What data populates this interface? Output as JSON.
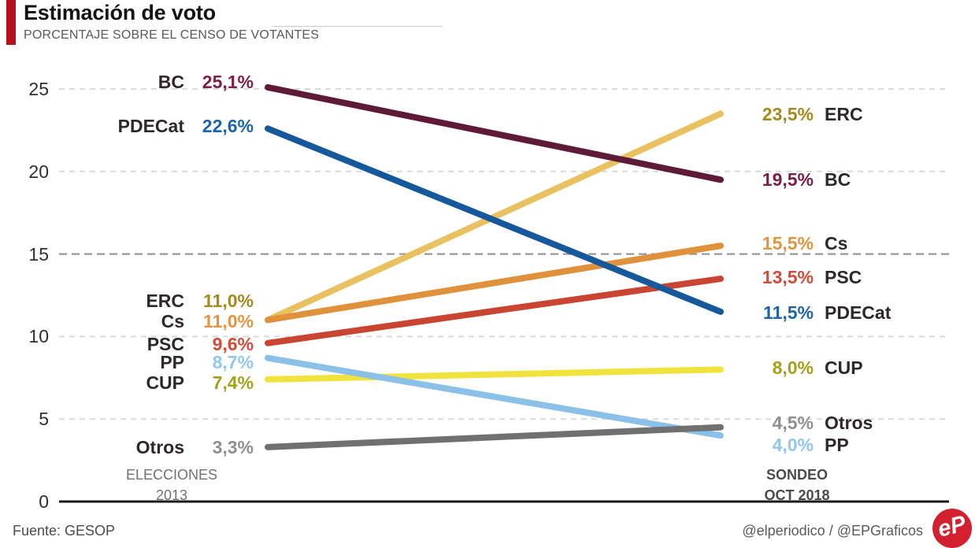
{
  "header": {
    "title": "Estimación de voto",
    "subtitle": "PORCENTAJE SOBRE EL CENSO DE VOTANTES",
    "accent_color": "#b5121f"
  },
  "chart_data": {
    "type": "line",
    "subtype": "slope-chart",
    "title": "Estimación de voto",
    "subtitle": "PORCENTAJE SOBRE EL CENSO DE VOTANTES",
    "x_labels": [
      {
        "lines": [
          "ELECCIONES",
          "2013"
        ],
        "bold": false
      },
      {
        "lines": [
          "SONDEO",
          "OCT 2018"
        ],
        "bold": true
      }
    ],
    "y_ticks": [
      25,
      20,
      15,
      10,
      5,
      0
    ],
    "ylim": [
      0,
      26
    ],
    "grid": "horizontal-dashed",
    "emphasized_gridline": 15,
    "name_color": "#2f282a",
    "series": [
      {
        "name": "BC",
        "values": [
          25.1,
          19.5
        ],
        "display": [
          "25,1%",
          "19,5%"
        ],
        "color": "#5e1a37",
        "value_color": "#7d2049"
      },
      {
        "name": "PDECat",
        "values": [
          22.6,
          11.5
        ],
        "display": [
          "22,6%",
          "11,5%"
        ],
        "color": "#15599c",
        "value_color": "#1d64ab"
      },
      {
        "name": "ERC",
        "values": [
          11.0,
          23.5
        ],
        "display": [
          "11,0%",
          "23,5%"
        ],
        "color": "#e9c161",
        "value_color": "#a68a1e"
      },
      {
        "name": "Cs",
        "values": [
          11.0,
          15.5
        ],
        "display": [
          "11,0%",
          "15,5%"
        ],
        "color": "#e0913c",
        "value_color": "#e39440"
      },
      {
        "name": "PSC",
        "values": [
          9.6,
          13.5
        ],
        "display": [
          "9,6%",
          "13,5%"
        ],
        "color": "#c94532",
        "value_color": "#d54a37"
      },
      {
        "name": "PP",
        "values": [
          8.7,
          4.0
        ],
        "display": [
          "8,7%",
          "4,0%"
        ],
        "color": "#8bc1e9",
        "value_color": "#92c8f0"
      },
      {
        "name": "CUP",
        "values": [
          7.4,
          8.0
        ],
        "display": [
          "7,4%",
          "8,0%"
        ],
        "color": "#f1e33e",
        "value_color": "#a5a01b"
      },
      {
        "name": "Otros",
        "values": [
          3.3,
          4.5
        ],
        "display": [
          "3,3%",
          "4,5%"
        ],
        "color": "#707070",
        "value_color": "#909090"
      }
    ]
  },
  "footer": {
    "source": "Fuente: GESOP",
    "credits": "@elperiodico / @EPGraficos",
    "logo_text": "eP",
    "logo_color": "#d2202e"
  }
}
